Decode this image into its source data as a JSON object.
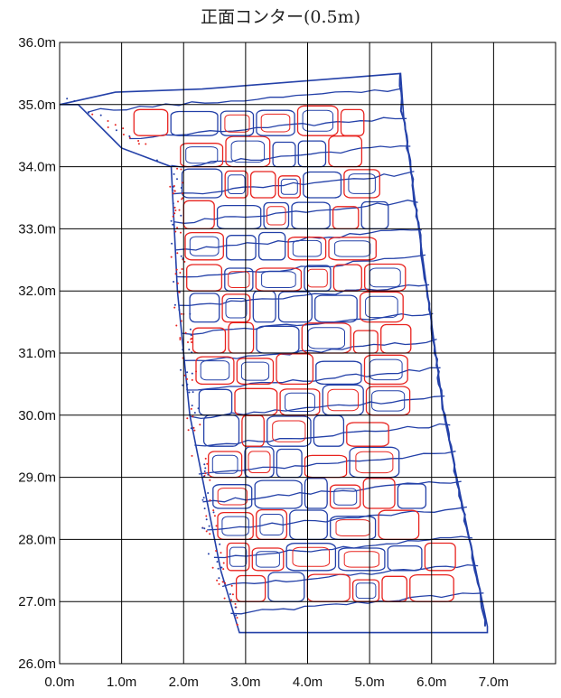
{
  "title": "正面コンター(0.5m)",
  "chart_data": {
    "type": "scatter",
    "title": "正面コンター(0.5m)",
    "x_ticks": [
      "0.0m",
      "1.0m",
      "2.0m",
      "3.0m",
      "4.0m",
      "5.0m",
      "6.0m",
      "7.0m"
    ],
    "y_ticks": [
      "36.0m",
      "35.0m",
      "34.0m",
      "33.0m",
      "32.0m",
      "31.0m",
      "30.0m",
      "29.0m",
      "28.0m",
      "27.0m",
      "26.0m"
    ],
    "xlim": [
      0,
      8
    ],
    "ylim": [
      26,
      36
    ],
    "grid": true,
    "series_colors": {
      "red": "#e8231f",
      "blue": "#2340a8"
    },
    "wall_outline": [
      [
        0.0,
        35.0
      ],
      [
        0.9,
        35.2
      ],
      [
        2.3,
        35.25
      ],
      [
        5.5,
        35.5
      ],
      [
        5.55,
        34.8
      ],
      [
        6.2,
        30.0
      ],
      [
        6.9,
        26.6
      ],
      [
        6.9,
        26.5
      ],
      [
        2.9,
        26.5
      ],
      [
        2.6,
        27.5
      ],
      [
        2.1,
        30.0
      ],
      [
        1.9,
        32.0
      ],
      [
        1.8,
        34.0
      ],
      [
        1.0,
        34.3
      ],
      [
        0.3,
        35.0
      ]
    ]
  }
}
